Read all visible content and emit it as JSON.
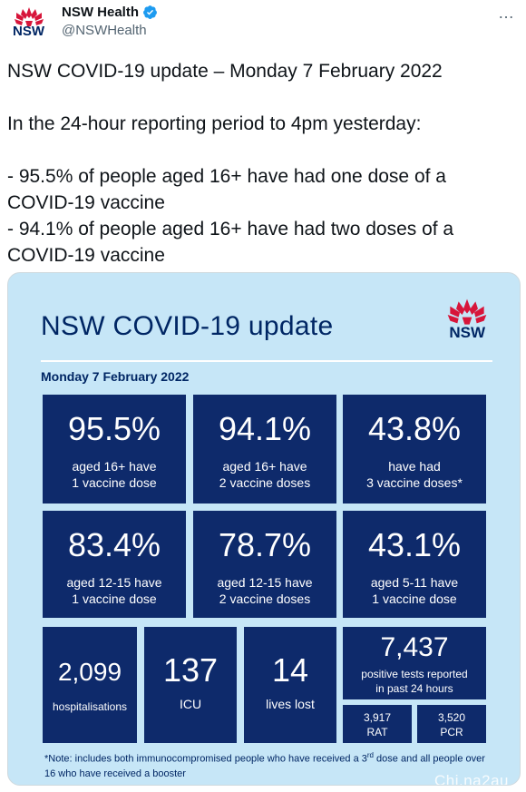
{
  "tweet": {
    "display_name": "NSW Health",
    "handle": "@NSWHealth",
    "logo_text": "NSW",
    "more_icon": "…",
    "text": "NSW COVID-19 update – Monday 7 February 2022\n\nIn the 24-hour reporting period to 4pm yesterday:\n\n- 95.5% of people aged 16+ have had one dose of a COVID-19 vaccine\n- 94.1% of people aged 16+ have had two doses of a COVID-19 vaccine"
  },
  "infographic": {
    "title": "NSW COVID-19 update",
    "logo_text": "NSW",
    "date": "Monday 7 February 2022",
    "tiles_row1": [
      {
        "value": "95.5%",
        "line1": "aged 16+ have",
        "line2": "1 vaccine dose"
      },
      {
        "value": "94.1%",
        "line1": "aged 16+ have",
        "line2": "2 vaccine doses"
      },
      {
        "value": "43.8%",
        "line1": "have had",
        "line2": "3 vaccine doses*"
      }
    ],
    "tiles_row2": [
      {
        "value": "83.4%",
        "line1": "aged 12-15 have",
        "line2": "1 vaccine dose"
      },
      {
        "value": "78.7%",
        "line1": "aged 12-15 have",
        "line2": "2 vaccine doses"
      },
      {
        "value": "43.1%",
        "line1": "aged 5-11 have",
        "line2": "1 vaccine dose"
      }
    ],
    "tiles_row3": [
      {
        "value": "2,099",
        "label": "hospitalisations"
      },
      {
        "value": "137",
        "label": "ICU"
      },
      {
        "value": "14",
        "label": "lives lost"
      }
    ],
    "tests": {
      "value": "7,437",
      "line1": "positive tests reported",
      "line2": "in past 24 hours",
      "rat_value": "3,917",
      "rat_label": "RAT",
      "pcr_value": "3,520",
      "pcr_label": "PCR"
    },
    "note_part1": "*Note: includes both immunocompromised people who have received a 3",
    "note_sup": "rd",
    "note_part2": " dose and all people over 16 who have received a booster"
  },
  "watermark": "Chi.na2au",
  "colors": {
    "tile": "#0e2a6b",
    "background": "#c6e6f7",
    "brand_navy": "#002664",
    "waratah_red": "#d7153a"
  }
}
